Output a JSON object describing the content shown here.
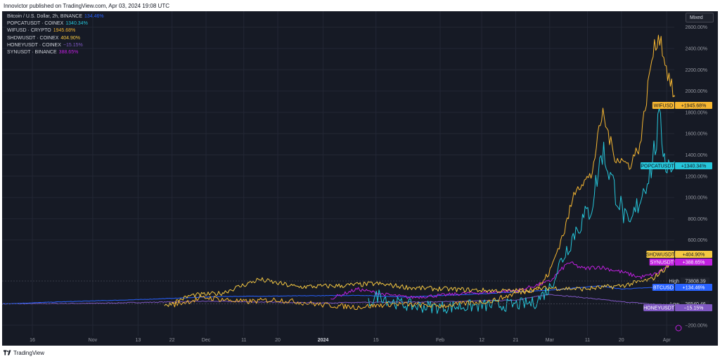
{
  "header": {
    "text": "Innovictor published on TradingView.com, Apr 03, 2024 19:08 UTC"
  },
  "footer": {
    "brand": "TradingView"
  },
  "toolbar": {
    "scale_mode": "Mixed"
  },
  "legend": [
    {
      "name": "Bitcoin / U.S. Dollar, 2h, BINANCE",
      "value": "134.46%",
      "color": "#2962ff"
    },
    {
      "name": "POPCATUSDT · COINEX",
      "value": "1340.34%",
      "color": "#26c6da"
    },
    {
      "name": "WIFUSD · CRYPTO",
      "value": "1945.68%",
      "color": "#f7b731"
    },
    {
      "name": "SHDWUSDT · COINEX",
      "value": "404.90%",
      "color": "#f5c842"
    },
    {
      "name": "HONEYUSDT · COINEX",
      "value": "−15.15%",
      "color": "#7e57c2"
    },
    {
      "name": "SYNUSDT · BINANCE",
      "value": "388.65%",
      "color": "#c020e0"
    }
  ],
  "colors": {
    "background": "#161a25",
    "grid": "#232735",
    "axis_text": "#9598a1"
  },
  "chart_data": {
    "type": "line",
    "y_scale": "percent",
    "ylim": [
      -300,
      2750
    ],
    "y_ticks": [
      "2600.00%",
      "2400.00%",
      "2200.00%",
      "2000.00%",
      "1800.00%",
      "1600.00%",
      "1400.00%",
      "1200.00%",
      "1000.00%",
      "800.00%",
      "600.00%",
      "−200.00%"
    ],
    "y_tick_values": [
      2600,
      2400,
      2200,
      2000,
      1800,
      1600,
      1400,
      1200,
      1000,
      800,
      600,
      -200
    ],
    "x_range": [
      "2023-10-08",
      "2024-04-03"
    ],
    "x_ticks": [
      {
        "label": "16",
        "date": "2023-10-16",
        "bold": false
      },
      {
        "label": "Nov",
        "date": "2023-11-01",
        "bold": false
      },
      {
        "label": "13",
        "date": "2023-11-13",
        "bold": false
      },
      {
        "label": "22",
        "date": "2023-11-22",
        "bold": false
      },
      {
        "label": "Dec",
        "date": "2023-12-01",
        "bold": false
      },
      {
        "label": "11",
        "date": "2023-12-11",
        "bold": false
      },
      {
        "label": "20",
        "date": "2023-12-20",
        "bold": false
      },
      {
        "label": "2024",
        "date": "2024-01-01",
        "bold": true
      },
      {
        "label": "15",
        "date": "2024-01-15",
        "bold": false
      },
      {
        "label": "Feb",
        "date": "2024-02-01",
        "bold": false
      },
      {
        "label": "12",
        "date": "2024-02-12",
        "bold": false
      },
      {
        "label": "21",
        "date": "2024-02-21",
        "bold": false
      },
      {
        "label": "Mar",
        "date": "2024-03-01",
        "bold": false
      },
      {
        "label": "11",
        "date": "2024-03-11",
        "bold": false
      },
      {
        "label": "20",
        "date": "2024-03-20",
        "bold": false
      },
      {
        "label": "Apr",
        "date": "2024-04-01",
        "bold": false
      }
    ],
    "series": [
      {
        "name": "HONEYUSDT",
        "color": "#7e57c2",
        "label": "HONEYUSDT",
        "value_label": "−15.15%",
        "noise": 4,
        "points": [
          [
            "2023-10-08",
            0
          ],
          [
            "2023-11-01",
            5
          ],
          [
            "2023-12-01",
            25
          ],
          [
            "2024-01-01",
            10
          ],
          [
            "2024-02-01",
            20
          ],
          [
            "2024-02-21",
            35
          ],
          [
            "2024-03-01",
            90
          ],
          [
            "2024-03-11",
            55
          ],
          [
            "2024-03-20",
            20
          ],
          [
            "2024-04-03",
            -15
          ]
        ]
      },
      {
        "name": "BTCUSD",
        "color": "#2962ff",
        "label": "BTCUSD",
        "value_label": "+134.46%",
        "noise": 2,
        "points": [
          [
            "2023-10-08",
            0
          ],
          [
            "2023-10-24",
            20
          ],
          [
            "2023-11-13",
            40
          ],
          [
            "2023-12-05",
            70
          ],
          [
            "2024-01-11",
            80
          ],
          [
            "2024-01-23",
            65
          ],
          [
            "2024-02-12",
            95
          ],
          [
            "2024-02-28",
            125
          ],
          [
            "2024-03-05",
            140
          ],
          [
            "2024-03-14",
            170
          ],
          [
            "2024-03-20",
            140
          ],
          [
            "2024-04-01",
            160
          ],
          [
            "2024-04-03",
            134
          ]
        ]
      },
      {
        "name": "SYNUSDT",
        "color": "#c020e0",
        "label": "SYNUSDT",
        "value_label": "+388.65%",
        "noise": 15,
        "points": [
          [
            "2024-01-03",
            50
          ],
          [
            "2024-01-10",
            140
          ],
          [
            "2024-01-17",
            90
          ],
          [
            "2024-01-24",
            60
          ],
          [
            "2024-02-01",
            80
          ],
          [
            "2024-02-08",
            100
          ],
          [
            "2024-02-15",
            110
          ],
          [
            "2024-02-22",
            130
          ],
          [
            "2024-03-01",
            210
          ],
          [
            "2024-03-06",
            390
          ],
          [
            "2024-03-10",
            330
          ],
          [
            "2024-03-14",
            350
          ],
          [
            "2024-03-20",
            300
          ],
          [
            "2024-03-25",
            250
          ],
          [
            "2024-03-29",
            280
          ],
          [
            "2024-04-03",
            388
          ]
        ]
      },
      {
        "name": "POPCATUSDT",
        "color": "#26c6da",
        "label": "POPCATUSDT",
        "value_label": "+1340.34%",
        "noise": 60,
        "points": [
          [
            "2024-01-13",
            10
          ],
          [
            "2024-01-16",
            90
          ],
          [
            "2024-01-19",
            20
          ],
          [
            "2024-01-25",
            -20
          ],
          [
            "2024-02-01",
            -30
          ],
          [
            "2024-02-10",
            -20
          ],
          [
            "2024-02-20",
            -10
          ],
          [
            "2024-02-26",
            10
          ],
          [
            "2024-03-01",
            150
          ],
          [
            "2024-03-04",
            400
          ],
          [
            "2024-03-08",
            700
          ],
          [
            "2024-03-12",
            900
          ],
          [
            "2024-03-15",
            1450
          ],
          [
            "2024-03-18",
            1100
          ],
          [
            "2024-03-22",
            700
          ],
          [
            "2024-03-25",
            1000
          ],
          [
            "2024-03-28",
            1300
          ],
          [
            "2024-03-30",
            1700
          ],
          [
            "2024-04-01",
            1300
          ],
          [
            "2024-04-03",
            1340
          ]
        ]
      },
      {
        "name": "SHDWUSDT",
        "color": "#f5c842",
        "label": "SHDWUSDT",
        "value_label": "+404.90%",
        "noise": 20,
        "points": [
          [
            "2023-11-20",
            -20
          ],
          [
            "2023-11-27",
            80
          ],
          [
            "2023-12-05",
            100
          ],
          [
            "2023-12-15",
            230
          ],
          [
            "2023-12-25",
            160
          ],
          [
            "2024-01-05",
            170
          ],
          [
            "2024-01-15",
            190
          ],
          [
            "2024-01-25",
            150
          ],
          [
            "2024-02-10",
            130
          ],
          [
            "2024-02-20",
            120
          ],
          [
            "2024-03-01",
            150
          ],
          [
            "2024-03-10",
            140
          ],
          [
            "2024-03-20",
            170
          ],
          [
            "2024-03-28",
            230
          ],
          [
            "2024-04-03",
            405
          ]
        ]
      },
      {
        "name": "WIFUSD",
        "color": "#f7b731",
        "label": "WIFUSD",
        "value_label": "+1945.68%",
        "noise": 25,
        "points": [
          [
            "2023-11-22",
            -10
          ],
          [
            "2023-12-01",
            60
          ],
          [
            "2023-12-11",
            20
          ],
          [
            "2023-12-20",
            40
          ],
          [
            "2024-01-01",
            -10
          ],
          [
            "2024-01-10",
            -30
          ],
          [
            "2024-01-20",
            0
          ],
          [
            "2024-02-01",
            -20
          ],
          [
            "2024-02-15",
            30
          ],
          [
            "2024-02-21",
            100
          ],
          [
            "2024-02-27",
            150
          ],
          [
            "2024-03-01",
            300
          ],
          [
            "2024-03-05",
            700
          ],
          [
            "2024-03-08",
            1100
          ],
          [
            "2024-03-12",
            1200
          ],
          [
            "2024-03-15",
            1800
          ],
          [
            "2024-03-18",
            1400
          ],
          [
            "2024-03-22",
            1300
          ],
          [
            "2024-03-25",
            1500
          ],
          [
            "2024-03-28",
            2300
          ],
          [
            "2024-03-30",
            2550
          ],
          [
            "2024-04-01",
            2200
          ],
          [
            "2024-04-03",
            1945
          ]
        ]
      }
    ],
    "reference_lines": [
      {
        "label": "High",
        "value_label": "73808.39",
        "level": 215,
        "color": "#2962ff"
      },
      {
        "label": "Low",
        "value_label": "26540.46",
        "level": 0,
        "color": "#2962ff"
      }
    ]
  }
}
